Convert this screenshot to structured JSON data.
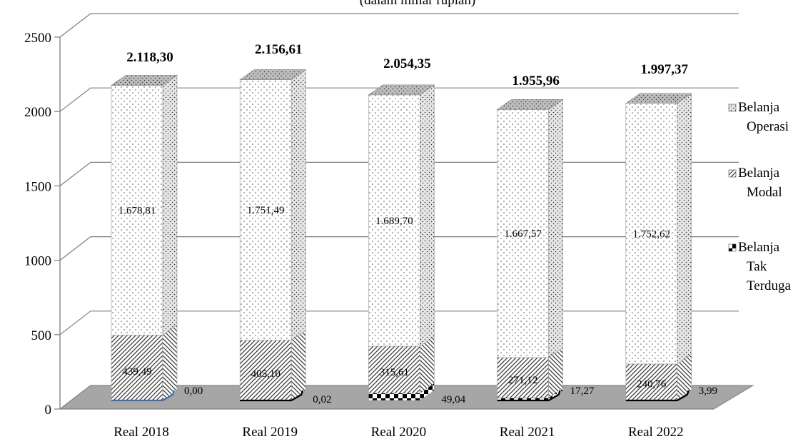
{
  "chart_data": {
    "type": "bar",
    "stacked": true,
    "three_d": true,
    "title": "(dalam miliar rupiah)",
    "xlabel": "",
    "ylabel": "",
    "ylim": [
      0,
      2500
    ],
    "yticks": [
      0,
      500,
      1000,
      1500,
      2000,
      2500
    ],
    "grid": true,
    "legend_position": "right",
    "categories": [
      "Real 2018",
      "Real 2019",
      "Real 2020",
      "Real 2021",
      "Real 2022"
    ],
    "totals": [
      2118.3,
      2156.61,
      2054.35,
      1955.96,
      1997.37
    ],
    "total_labels": [
      "2.118,30",
      "2.156,61",
      "2.054,35",
      "1.955,96",
      "1.997,37"
    ],
    "series": [
      {
        "name": "Belanja Tak Terduga",
        "legend_lines": [
          "Belanja",
          "Tak",
          "Terduga"
        ],
        "values": [
          0.0,
          0.02,
          49.04,
          17.27,
          3.99
        ],
        "labels": [
          "0,00",
          "0,02",
          "49,04",
          "17,27",
          "3,99"
        ]
      },
      {
        "name": "Belanja Modal",
        "legend_lines": [
          "Belanja",
          "Modal"
        ],
        "values": [
          439.49,
          405.1,
          315.61,
          271.12,
          240.76
        ],
        "labels": [
          "439,49",
          "405,10",
          "315,61",
          "271,12",
          "240,76"
        ]
      },
      {
        "name": "Belanja Operasi",
        "legend_lines": [
          "Belanja",
          "Operasi"
        ],
        "values": [
          1678.81,
          1751.49,
          1689.7,
          1667.57,
          1752.62
        ],
        "labels": [
          "1.678,81",
          "1.751,49",
          "1.689,70",
          "1.667,57",
          "1.752,62"
        ]
      }
    ]
  }
}
